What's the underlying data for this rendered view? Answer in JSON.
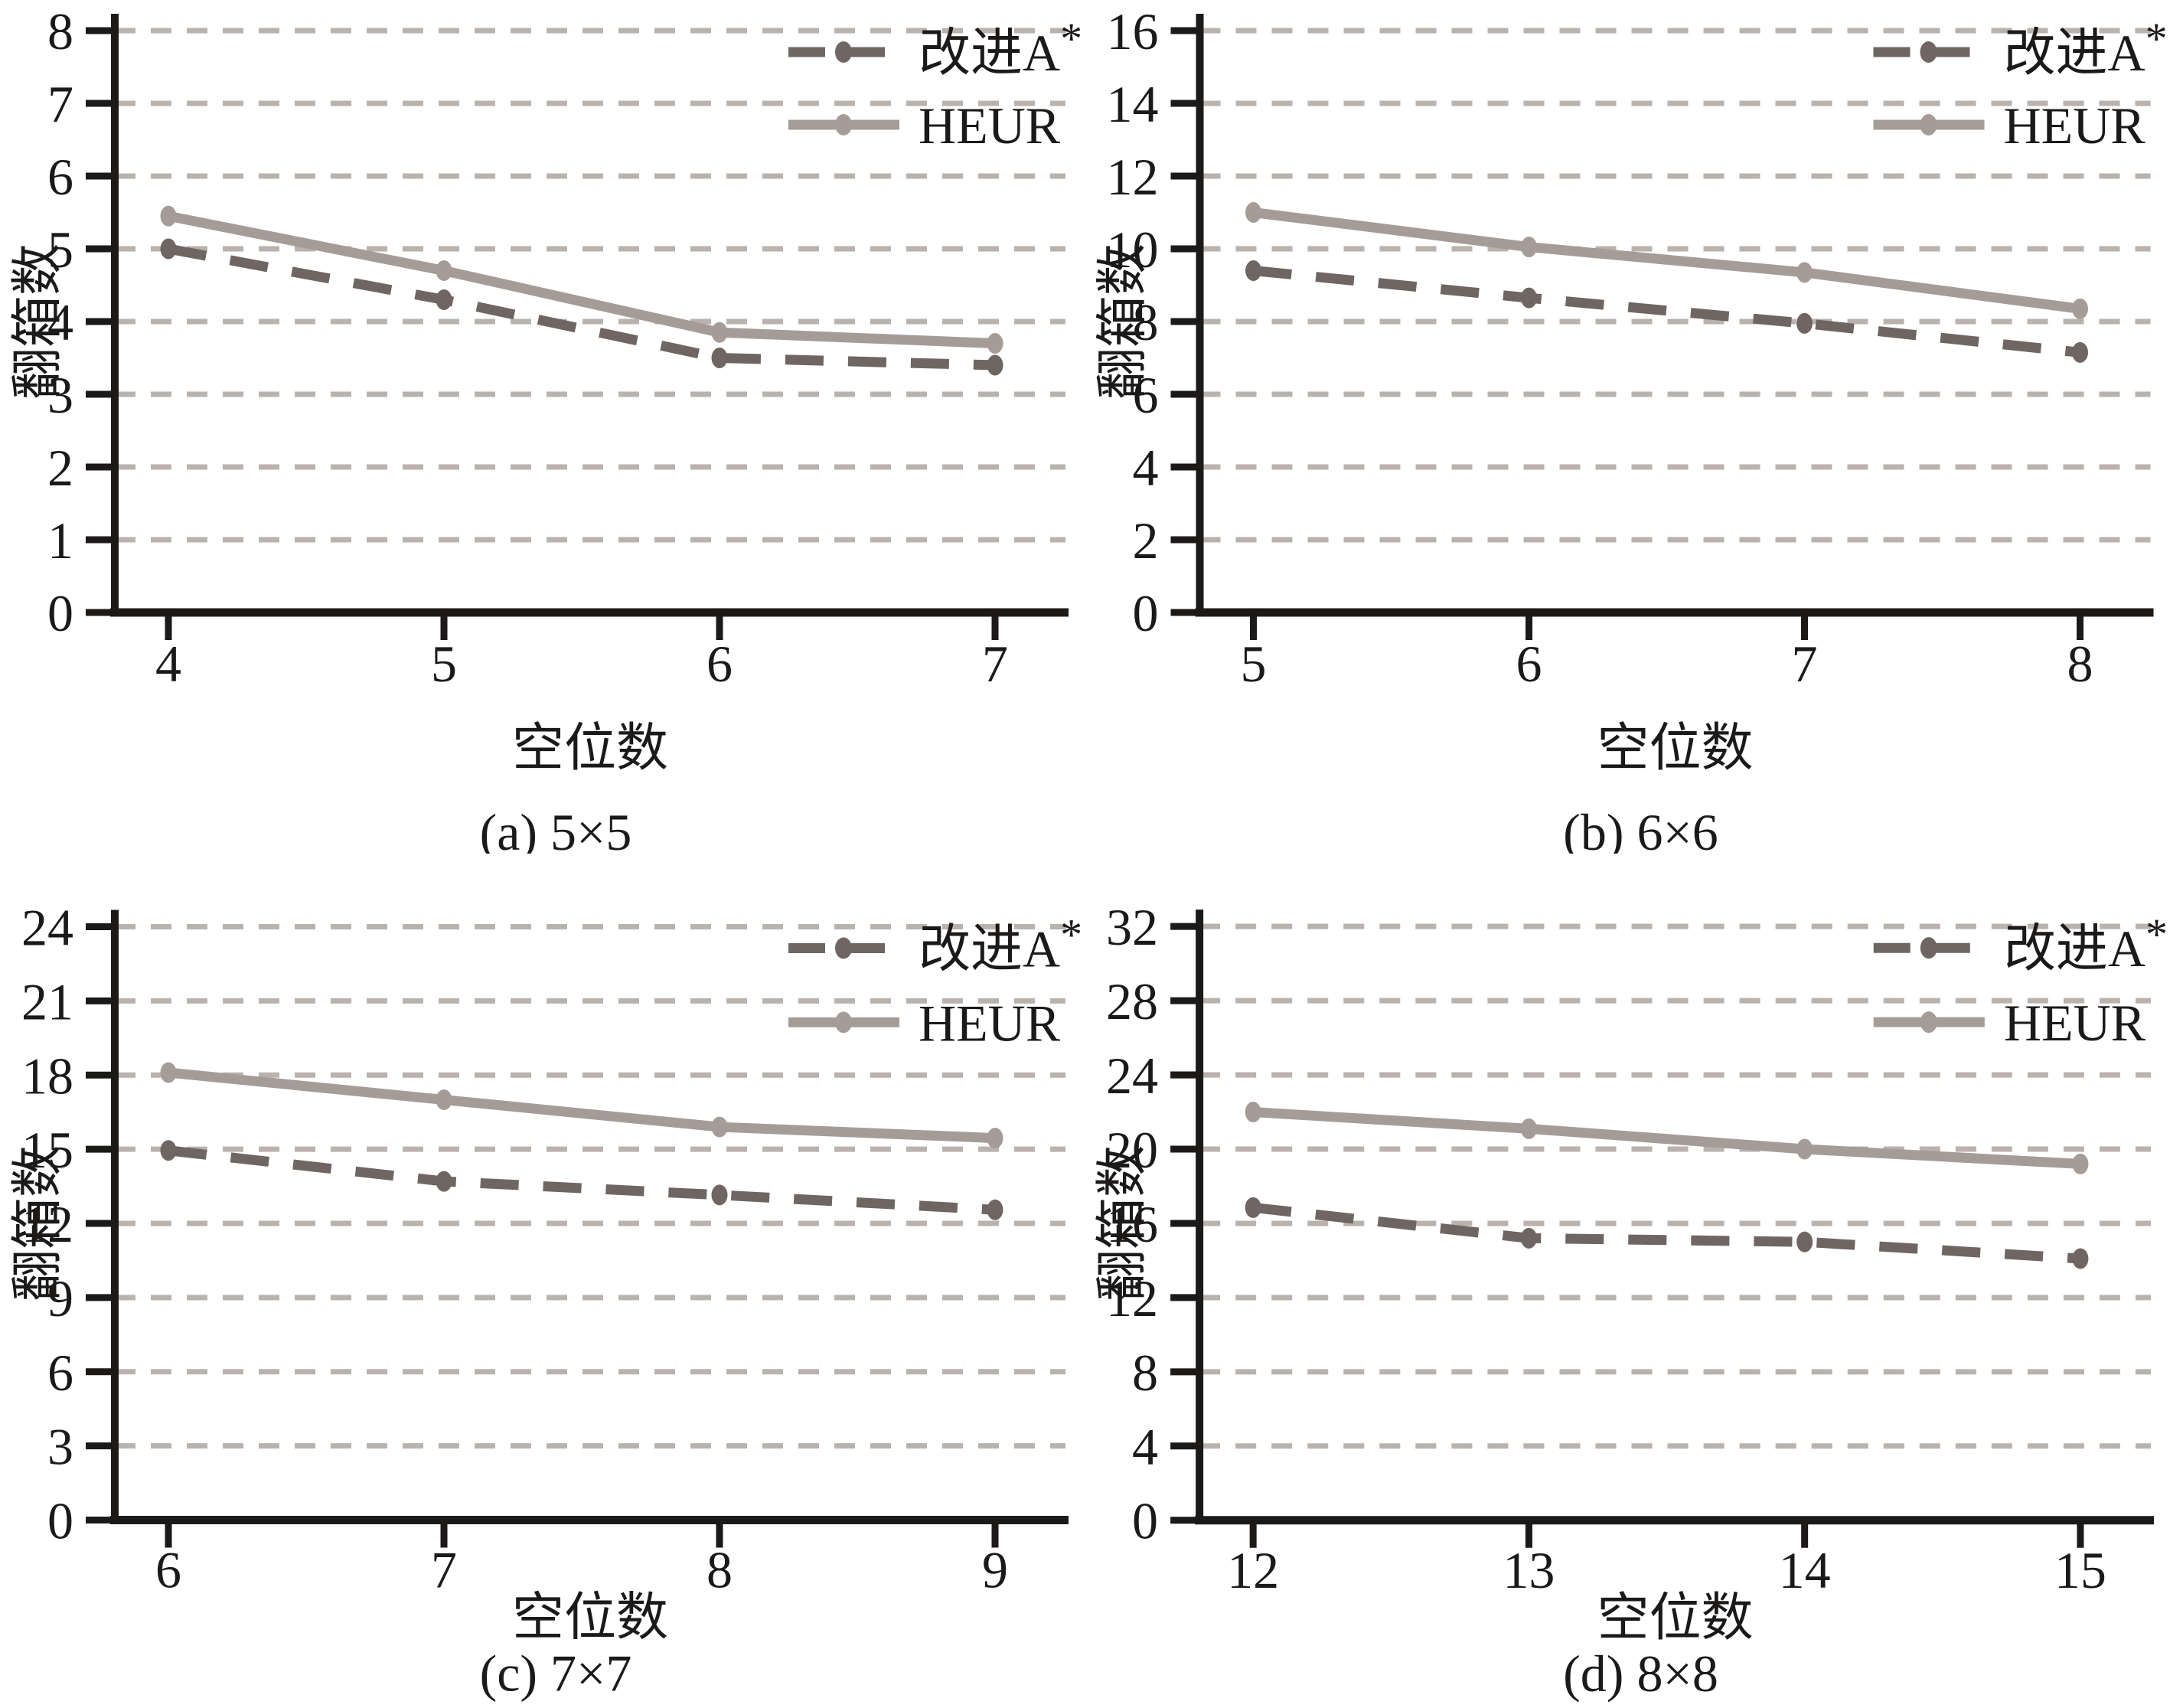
{
  "figure": {
    "background": "#ffffff",
    "axis_color": "#1c1a19",
    "text_color": "#1c1a19",
    "grid_color": "#b9b2ae",
    "series_colors": {
      "improved": "#6f6562",
      "heur": "#a59c98"
    }
  },
  "chart_data": [
    {
      "type": "line",
      "title": "(a) 5×5",
      "xlabel": "空位数",
      "ylabel": "翻箱数",
      "x": [
        4,
        5,
        6,
        7
      ],
      "ylim": [
        0,
        8
      ],
      "ytick_step": 1,
      "grid": true,
      "legend_position": "upper right",
      "series": [
        {
          "name": "改进A*",
          "style": "dashed",
          "color": "#6f6562",
          "values": [
            5.0,
            4.3,
            3.5,
            3.4
          ]
        },
        {
          "name": "HEUR",
          "style": "solid",
          "color": "#a59c98",
          "values": [
            5.45,
            4.7,
            3.85,
            3.7
          ]
        }
      ]
    },
    {
      "type": "line",
      "title": "(b) 6×6",
      "xlabel": "空位数",
      "ylabel": "翻箱数",
      "x": [
        5,
        6,
        7,
        8
      ],
      "ylim": [
        0,
        16
      ],
      "ytick_step": 2,
      "grid": true,
      "legend_position": "upper right",
      "series": [
        {
          "name": "改进A*",
          "style": "dashed",
          "color": "#6f6562",
          "values": [
            9.4,
            8.65,
            7.95,
            7.15
          ]
        },
        {
          "name": "HEUR",
          "style": "solid",
          "color": "#a59c98",
          "values": [
            11.0,
            10.05,
            9.35,
            8.35
          ]
        }
      ]
    },
    {
      "type": "line",
      "title": "(c) 7×7",
      "xlabel": "空位数",
      "ylabel": "翻箱数",
      "x": [
        6,
        7,
        8,
        9
      ],
      "ylim": [
        0,
        24
      ],
      "ytick_step": 3,
      "grid": true,
      "legend_position": "upper right",
      "series": [
        {
          "name": "改进A*",
          "style": "dashed",
          "color": "#6f6562",
          "values": [
            14.95,
            13.7,
            13.15,
            12.55
          ]
        },
        {
          "name": "HEUR",
          "style": "solid",
          "color": "#a59c98",
          "values": [
            18.1,
            17.0,
            15.9,
            15.45
          ]
        }
      ]
    },
    {
      "type": "line",
      "title": "(d) 8×8",
      "xlabel": "空位数",
      "ylabel": "翻箱数",
      "x": [
        12,
        13,
        14,
        15
      ],
      "ylim": [
        0,
        32
      ],
      "ytick_step": 4,
      "grid": true,
      "legend_position": "upper right",
      "series": [
        {
          "name": "改进A*",
          "style": "dashed",
          "color": "#6f6562",
          "values": [
            16.85,
            15.2,
            15.0,
            14.1
          ]
        },
        {
          "name": "HEUR",
          "style": "solid",
          "color": "#a59c98",
          "values": [
            22.0,
            21.1,
            20.0,
            19.2
          ]
        }
      ]
    }
  ]
}
